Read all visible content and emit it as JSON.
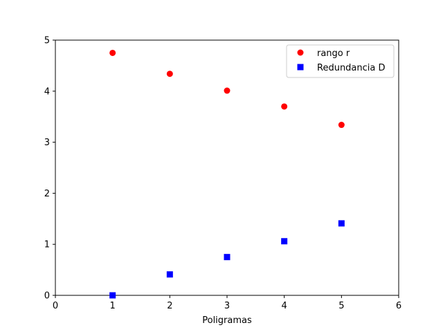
{
  "chart_data": {
    "type": "scatter",
    "title": "",
    "xlabel": "Poligramas",
    "ylabel": "",
    "xlim": [
      0,
      6
    ],
    "ylim": [
      0,
      5
    ],
    "xticks": [
      "0",
      "1",
      "2",
      "3",
      "4",
      "5",
      "6"
    ],
    "yticks": [
      "0",
      "1",
      "2",
      "3",
      "4",
      "5"
    ],
    "grid": false,
    "legend_position": "top-right",
    "series": [
      {
        "name": "rango r",
        "marker": "circle",
        "color": "#ff0000",
        "x": [
          1,
          2,
          3,
          4,
          5
        ],
        "y": [
          4.75,
          4.34,
          4.01,
          3.7,
          3.34
        ]
      },
      {
        "name": "Redundancia D",
        "marker": "square",
        "color": "#0000ff",
        "x": [
          1,
          2,
          3,
          4,
          5
        ],
        "y": [
          0.0,
          0.41,
          0.75,
          1.06,
          1.41
        ]
      }
    ]
  }
}
